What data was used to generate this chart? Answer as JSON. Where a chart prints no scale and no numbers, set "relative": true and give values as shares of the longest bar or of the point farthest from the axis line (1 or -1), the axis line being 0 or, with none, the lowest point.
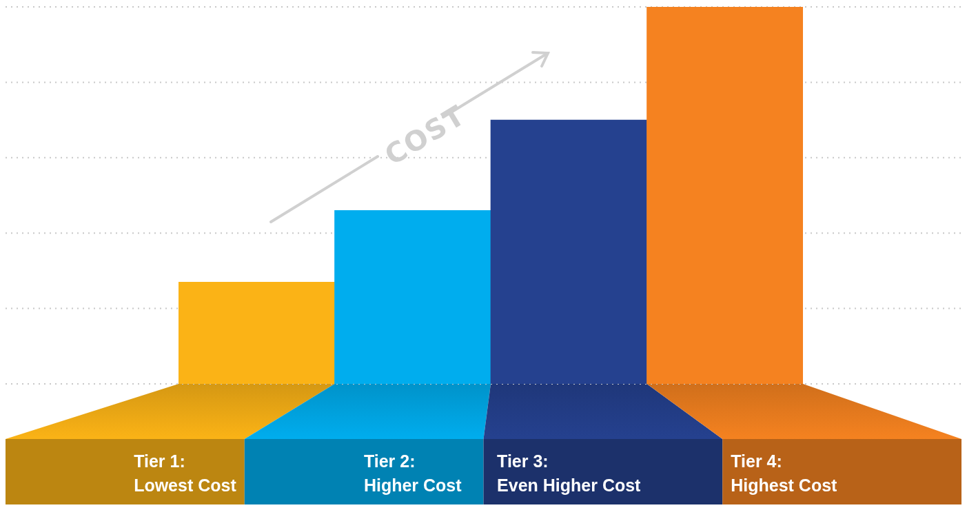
{
  "chart_data": {
    "type": "bar",
    "relative": true,
    "grid": "y",
    "legend": false,
    "categories": [
      "Tier 1:\nLowest Cost",
      "Tier 2:\nHigher Cost",
      "Tier 3:\nEven Higher Cost",
      "Tier 4:\nHighest Cost"
    ],
    "values": [
      0.27,
      0.46,
      0.7,
      1
    ],
    "colors": [
      "#fbb316",
      "#00adee",
      "#25418f",
      "#f58220"
    ],
    "annotations": [
      "COST"
    ]
  }
}
